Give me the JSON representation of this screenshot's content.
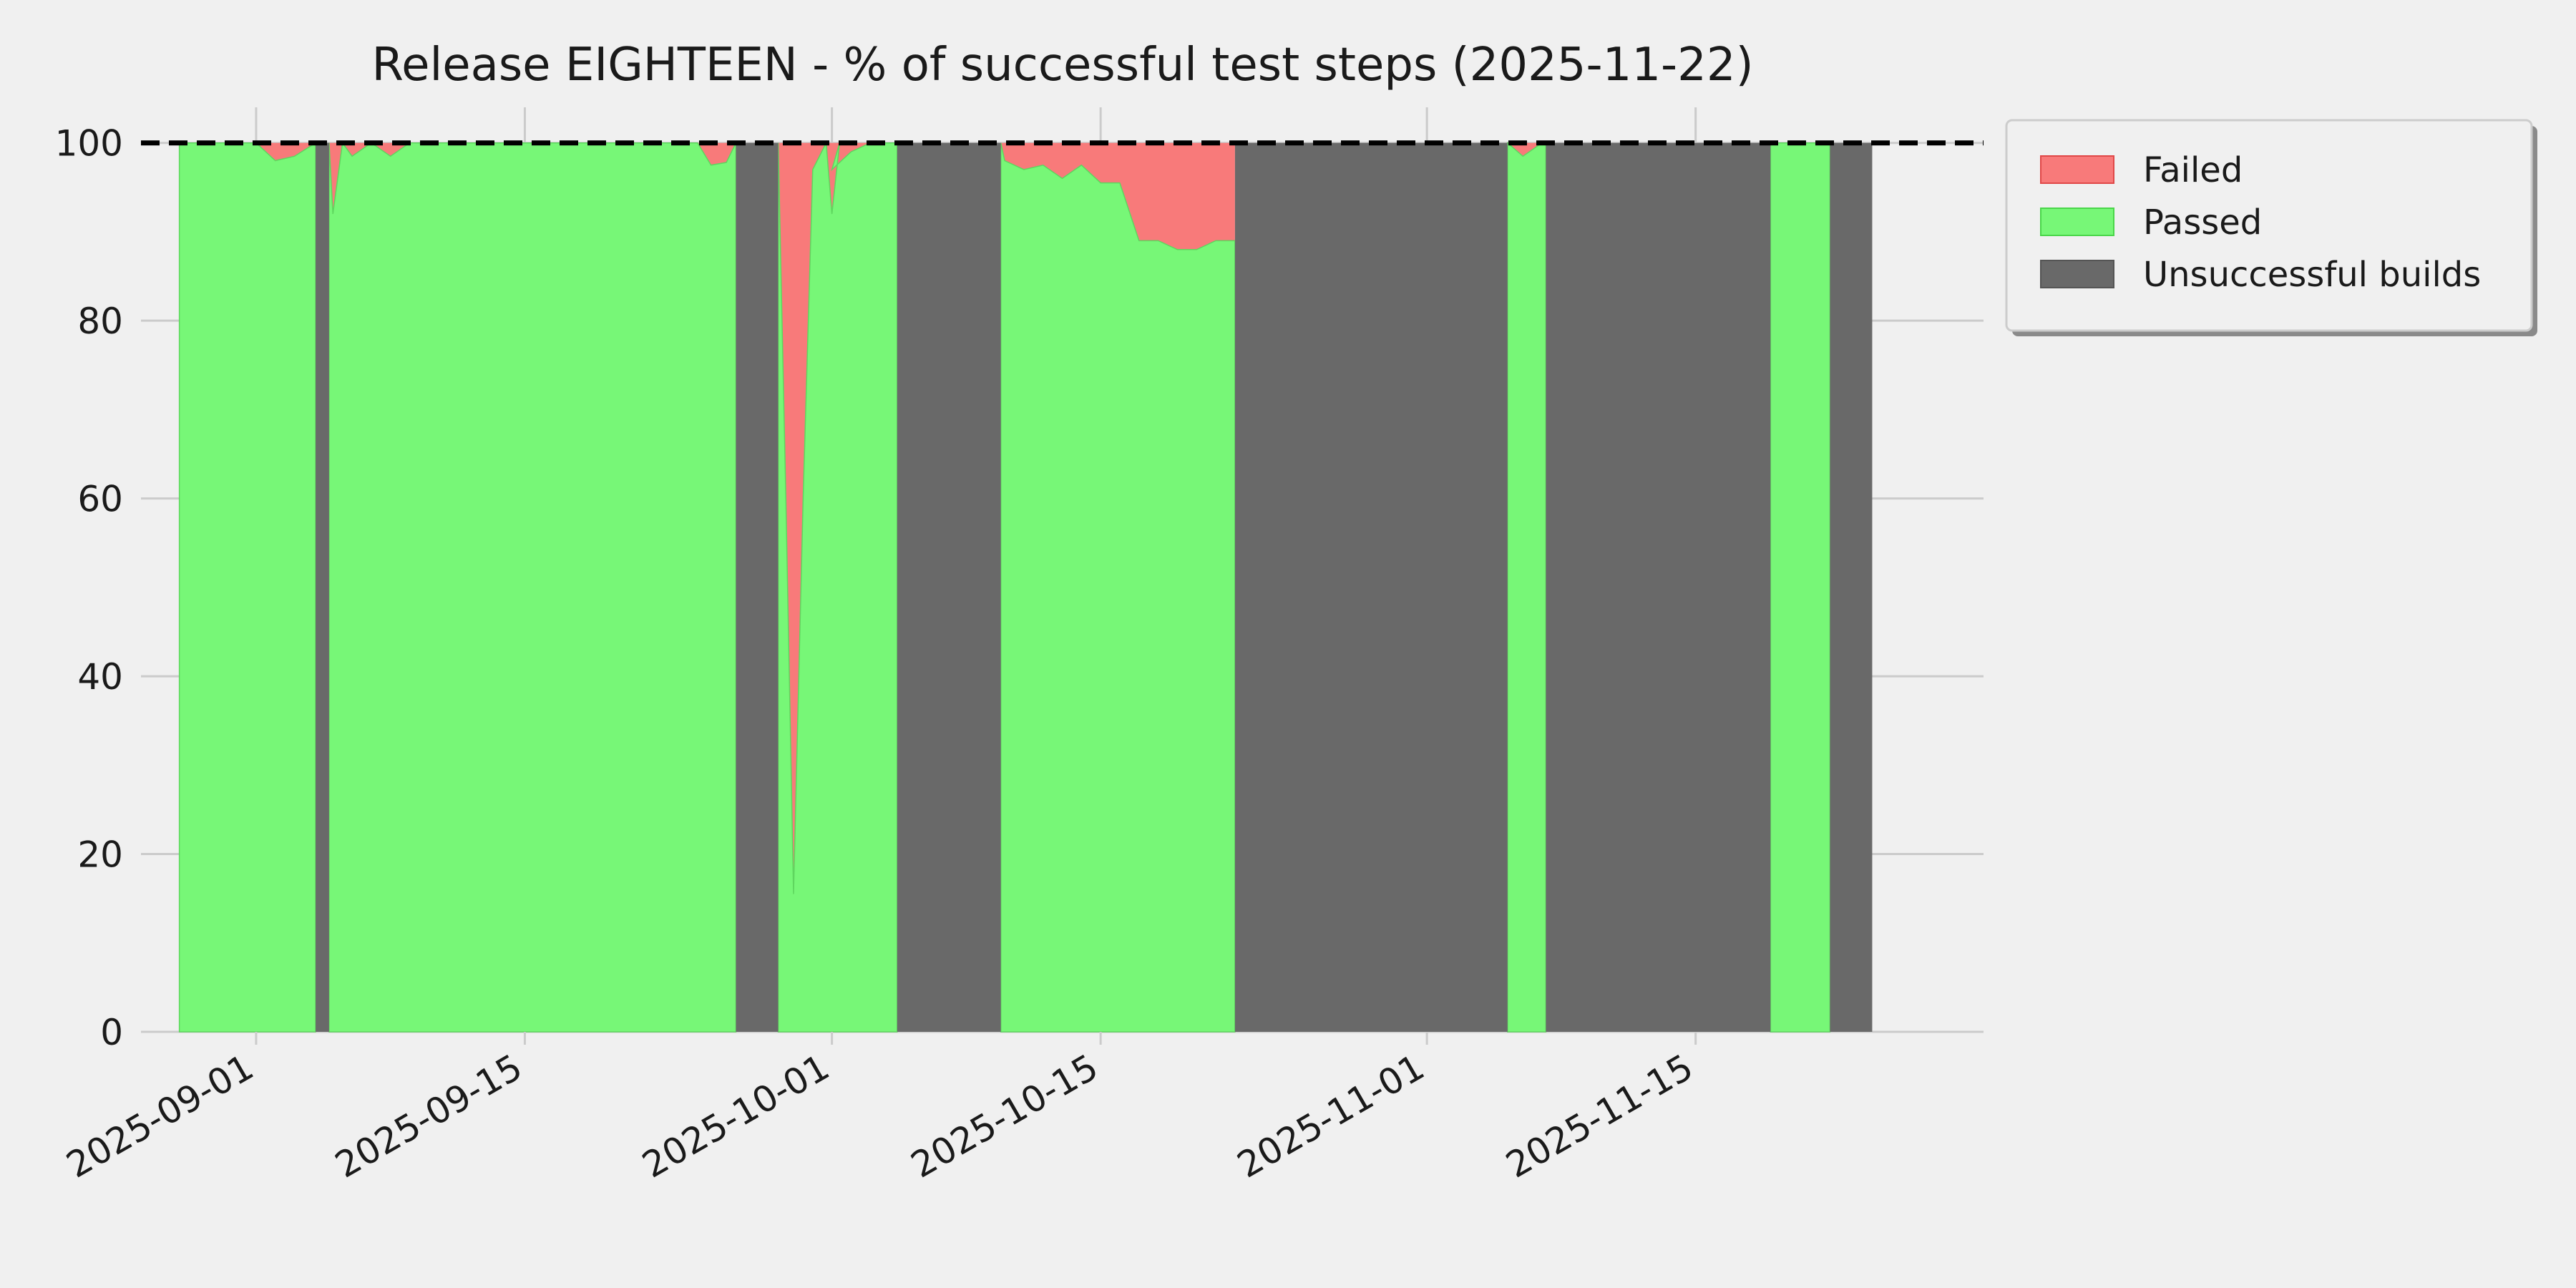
{
  "chart_data": {
    "type": "area",
    "title": "Release EIGHTEEN - % of successful test steps (2025-11-22)",
    "xlabel": "",
    "ylabel": "",
    "x_range": [
      "2025-08-26",
      "2025-11-30"
    ],
    "ylim": [
      0,
      104
    ],
    "yticks": [
      0,
      20,
      40,
      60,
      80,
      100
    ],
    "xticks": [
      "2025-09-01",
      "2025-09-15",
      "2025-10-01",
      "2025-10-15",
      "2025-11-01",
      "2025-11-15"
    ],
    "grid": true,
    "reference_line": {
      "y": 100,
      "style": "dashed",
      "color": "#000000"
    },
    "legend": {
      "placement": "outside-top-right",
      "entries": [
        {
          "key": "failed",
          "label": "Failed",
          "color": "#f87a7a"
        },
        {
          "key": "passed",
          "label": "Passed",
          "color": "#77f777"
        },
        {
          "key": "unsuccessful",
          "label": "Unsuccessful builds",
          "color": "#696969"
        }
      ]
    },
    "unsuccessful_builds": [
      {
        "start": "2025-09-04.1",
        "end": "2025-09-04.8"
      },
      {
        "start": "2025-09-26.0",
        "end": "2025-09-28.2"
      },
      {
        "start": "2025-10-04.4",
        "end": "2025-10-09.8"
      },
      {
        "start": "2025-10-22.0",
        "end": "2025-11-05.2"
      },
      {
        "start": "2025-11-07.2",
        "end": "2025-11-18.9"
      },
      {
        "start": "2025-11-22.0",
        "end": "2025-11-24.2"
      }
    ],
    "segments": [
      {
        "points": [
          [
            "2025-08-28.0",
            100
          ],
          [
            "2025-09-01.0",
            100
          ],
          [
            "2025-09-02.0",
            98
          ],
          [
            "2025-09-03.0",
            98.5
          ],
          [
            "2025-09-04.1",
            100
          ]
        ]
      },
      {
        "points": [
          [
            "2025-09-04.8",
            100
          ],
          [
            "2025-09-05.0",
            92
          ],
          [
            "2025-09-05.5",
            100
          ],
          [
            "2025-09-06.0",
            98.5
          ],
          [
            "2025-09-07.0",
            100
          ],
          [
            "2025-09-08.0",
            98.5
          ],
          [
            "2025-09-09.0",
            100
          ],
          [
            "2025-09-24.0",
            100
          ],
          [
            "2025-09-24.7",
            97.5
          ],
          [
            "2025-09-25.5",
            97.8
          ],
          [
            "2025-09-26.0",
            100
          ]
        ]
      },
      {
        "points": [
          [
            "2025-09-28.2",
            100
          ],
          [
            "2025-09-28.6",
            60
          ],
          [
            "2025-09-29.0",
            15.5
          ],
          [
            "2025-09-29.5",
            60
          ],
          [
            "2025-09-30.0",
            97
          ],
          [
            "2025-09-30.7",
            100
          ],
          [
            "2025-09-31.0",
            92
          ],
          [
            "2025-09-31.4",
            100
          ],
          [
            "2025-10-01.0",
            97
          ],
          [
            "2025-10-02.0",
            99
          ],
          [
            "2025-10-03.0",
            100
          ],
          [
            "2025-10-04.4",
            100
          ]
        ]
      },
      {
        "points": [
          [
            "2025-10-09.8",
            100
          ],
          [
            "2025-10-10.0",
            98
          ],
          [
            "2025-10-11.0",
            97
          ],
          [
            "2025-10-12.0",
            97.5
          ],
          [
            "2025-10-13.0",
            96
          ],
          [
            "2025-10-14.0",
            97.5
          ],
          [
            "2025-10-15.0",
            95.5
          ],
          [
            "2025-10-16.0",
            95.5
          ],
          [
            "2025-10-17.0",
            89
          ],
          [
            "2025-10-18.0",
            89
          ],
          [
            "2025-10-19.0",
            88
          ],
          [
            "2025-10-20.0",
            88
          ],
          [
            "2025-10-21.0",
            89
          ],
          [
            "2025-10-22.0",
            89
          ]
        ]
      },
      {
        "points": [
          [
            "2025-11-05.2",
            100
          ],
          [
            "2025-11-06.0",
            98.5
          ],
          [
            "2025-11-07.0",
            100
          ],
          [
            "2025-11-07.2",
            100
          ]
        ]
      },
      {
        "points": [
          [
            "2025-11-18.9",
            100
          ],
          [
            "2025-11-22.0",
            100
          ]
        ]
      }
    ]
  }
}
